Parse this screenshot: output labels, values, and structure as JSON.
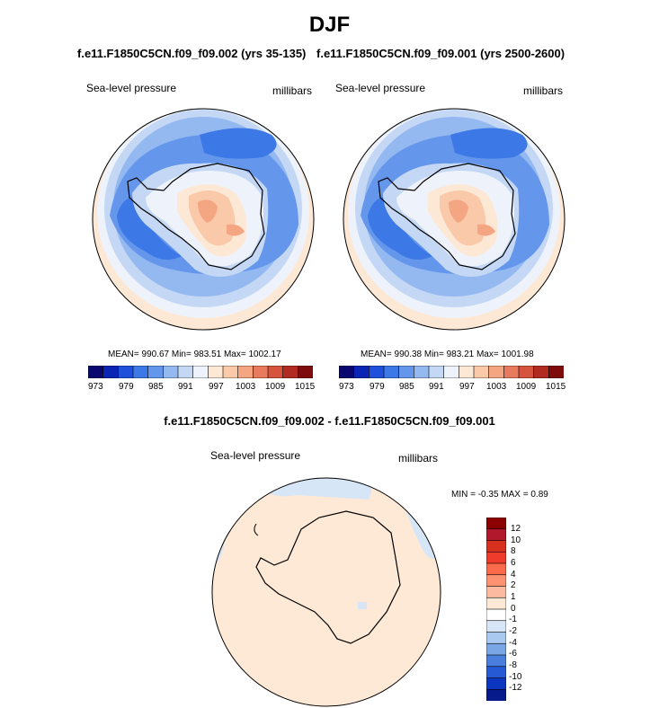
{
  "page_title": "DJF",
  "panel_left": {
    "case_title": "f.e11.F1850C5CN.f09_f09.002 (yrs 35-135)",
    "variable": "Sea-level pressure",
    "units": "millibars",
    "stats": "MEAN= 990.67  Min= 983.51  Max= 1002.17"
  },
  "panel_right": {
    "case_title": "f.e11.F1850C5CN.f09_f09.001 (yrs 2500-2600)",
    "variable": "Sea-level pressure",
    "units": "millibars",
    "stats": "MEAN= 990.38  Min= 983.21  Max= 1001.98"
  },
  "colorbar_top": {
    "colors": [
      "#08086e",
      "#0a24b4",
      "#1e50dc",
      "#3c78e6",
      "#6496eb",
      "#94b8f0",
      "#c4d8f5",
      "#eef3fb",
      "#fde8d6",
      "#f9c9a9",
      "#f4a582",
      "#e87a5e",
      "#d6533d",
      "#b22b21",
      "#7e0c0c"
    ],
    "labels": [
      "973",
      "979",
      "985",
      "991",
      "997",
      "1003",
      "1009",
      "1015"
    ]
  },
  "diff_panel": {
    "title": "f.e11.F1850C5CN.f09_f09.002 - f.e11.F1850C5CN.f09_f09.001",
    "variable": "Sea-level pressure",
    "units": "millibars",
    "stats": "MIN =  -0.35 MAX =   0.89",
    "colors": [
      "#8b0000",
      "#b2182b",
      "#d7301f",
      "#ef3b2c",
      "#fb6a4a",
      "#fc9272",
      "#fcbba1",
      "#fde9d6",
      "#ffffff",
      "#d6e6f7",
      "#a9c9ee",
      "#7aa6e6",
      "#4a7fdd",
      "#2659d4",
      "#0d36c0",
      "#061a8c"
    ],
    "labels": [
      "12",
      "10",
      "8",
      "6",
      "4",
      "2",
      "1",
      "0",
      "-1",
      "-2",
      "-4",
      "-6",
      "-8",
      "-10",
      "-12"
    ]
  }
}
